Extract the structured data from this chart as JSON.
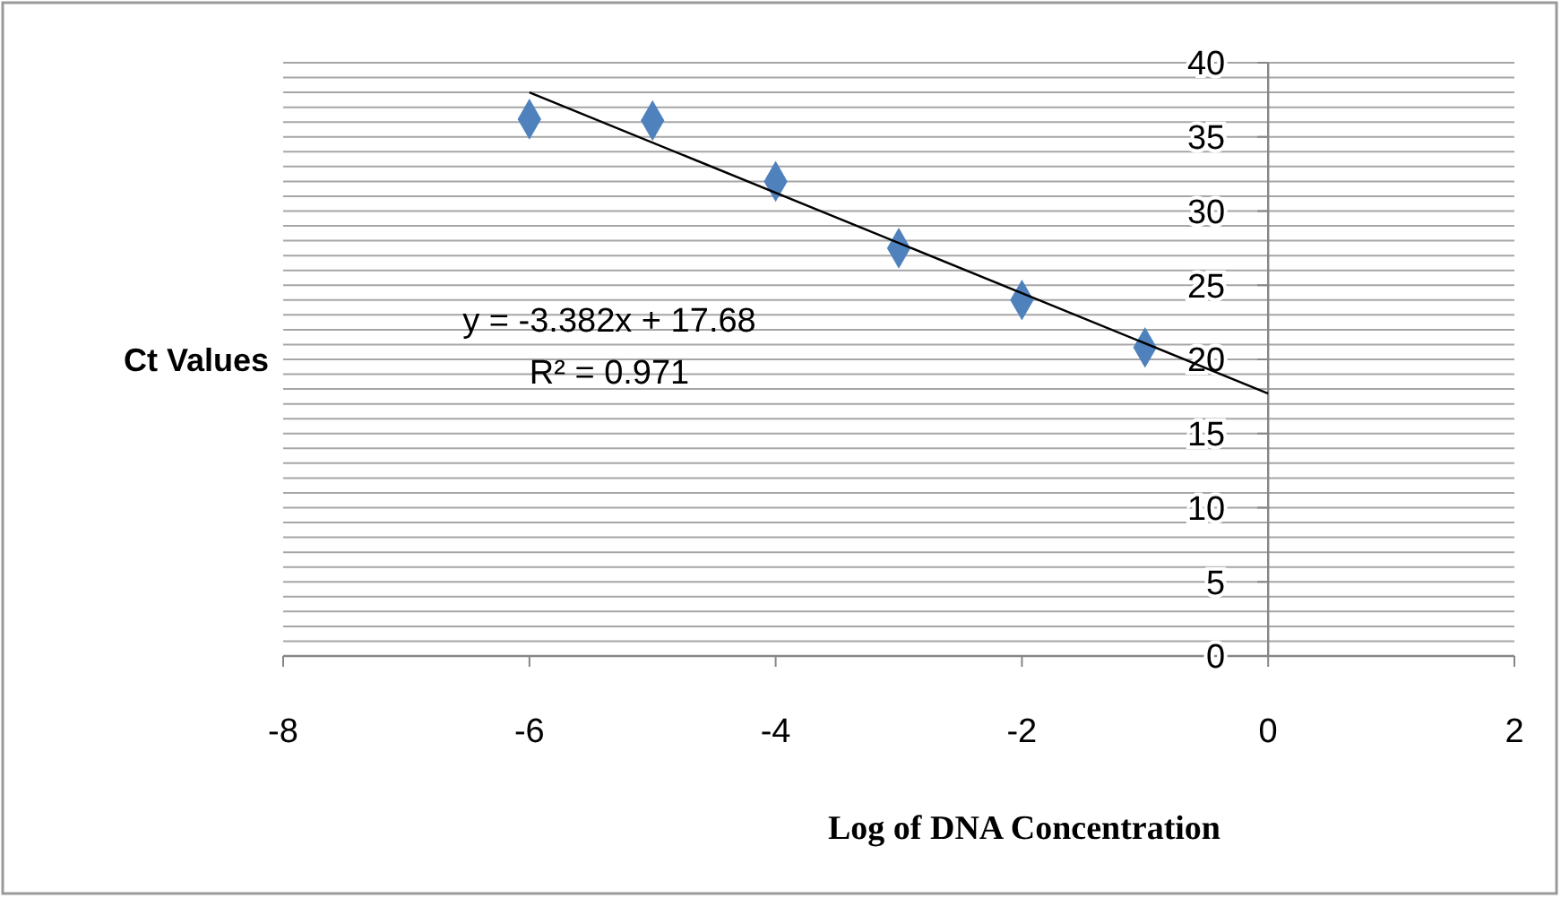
{
  "chart_data": {
    "type": "scatter",
    "xlabel": "Log of DNA Concentration",
    "ylabel": "Ct Values",
    "xlim": [
      -8,
      2
    ],
    "xticks": [
      -8,
      -6,
      -4,
      -2,
      0,
      2
    ],
    "ylim": [
      0,
      40
    ],
    "yticks": [
      0,
      {
        "value": 1,
        "label": null
      },
      {
        "value": 2,
        "label": null
      },
      {
        "value": 3,
        "label": null
      },
      {
        "value": 4,
        "label": null
      },
      5,
      {
        "value": 6,
        "label": null
      },
      {
        "value": 7,
        "label": null
      },
      {
        "value": 8,
        "label": null
      },
      {
        "value": 9,
        "label": null
      },
      10,
      {
        "value": 11,
        "label": null
      },
      {
        "value": 12,
        "label": null
      },
      {
        "value": 13,
        "label": null
      },
      {
        "value": 14,
        "label": null
      },
      15,
      {
        "value": 16,
        "label": null
      },
      {
        "value": 17,
        "label": null
      },
      {
        "value": 18,
        "label": null
      },
      {
        "value": 19,
        "label": null
      },
      20,
      {
        "value": 21,
        "label": null
      },
      {
        "value": 22,
        "label": null
      },
      {
        "value": 23,
        "label": null
      },
      {
        "value": 24,
        "label": null
      },
      25,
      {
        "value": 26,
        "label": null
      },
      {
        "value": 27,
        "label": null
      },
      {
        "value": 28,
        "label": null
      },
      {
        "value": 29,
        "label": null
      },
      30,
      {
        "value": 31,
        "label": null
      },
      {
        "value": 32,
        "label": null
      },
      {
        "value": 33,
        "label": null
      },
      {
        "value": 34,
        "label": null
      },
      35,
      {
        "value": 36,
        "label": null
      },
      {
        "value": 37,
        "label": null
      },
      {
        "value": 38,
        "label": null
      },
      {
        "value": 39,
        "label": null
      },
      40
    ],
    "grid": "y",
    "marker": "diamond",
    "series": [
      {
        "color": "#4f81bd",
        "x": [
          -6,
          -5,
          -4,
          -3,
          -2,
          -1
        ],
        "values": [
          36.2,
          36.1,
          32.0,
          27.5,
          24.0,
          20.8
        ]
      },
      {
        "type": "line",
        "color": "#000000",
        "marker": "none",
        "x": [
          -6,
          0
        ],
        "values": [
          38.0,
          17.7
        ]
      }
    ],
    "annotations": [
      "y = -3.382x + 17.68",
      "R² = 0.971"
    ]
  }
}
